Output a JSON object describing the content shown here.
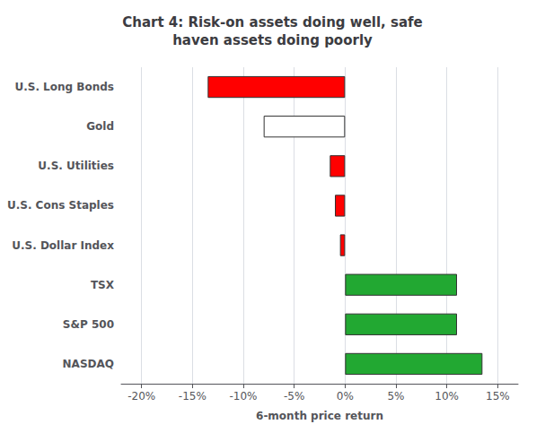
{
  "chart_data": {
    "type": "bar",
    "orientation": "horizontal",
    "title": "Chart 4: Risk-on assets doing well, safe\nhaven assets doing poorly",
    "xlabel": "6-month price return",
    "categories": [
      "U.S. Long Bonds",
      "Gold",
      "U.S. Utilities",
      "U.S. Cons Staples",
      "U.S. Dollar Index",
      "TSX",
      "S&P 500",
      "NASDAQ"
    ],
    "values": [
      -13.5,
      -8.0,
      -1.5,
      -1.0,
      -0.5,
      11.0,
      11.0,
      13.5
    ],
    "colors": [
      "red",
      "white",
      "red",
      "red",
      "red",
      "#22a832",
      "#22a832",
      "#22a832"
    ],
    "xlim": [
      -22,
      17
    ],
    "xticks": [
      {
        "value": -20,
        "label": "-20%"
      },
      {
        "value": -15,
        "label": "-15%"
      },
      {
        "value": -10,
        "label": "-10%"
      },
      {
        "value": -5,
        "label": "-5%"
      },
      {
        "value": 0,
        "label": "0%"
      },
      {
        "value": 5,
        "label": "5%"
      },
      {
        "value": 10,
        "label": "10%"
      },
      {
        "value": 15,
        "label": "15%"
      }
    ],
    "grid": true
  }
}
